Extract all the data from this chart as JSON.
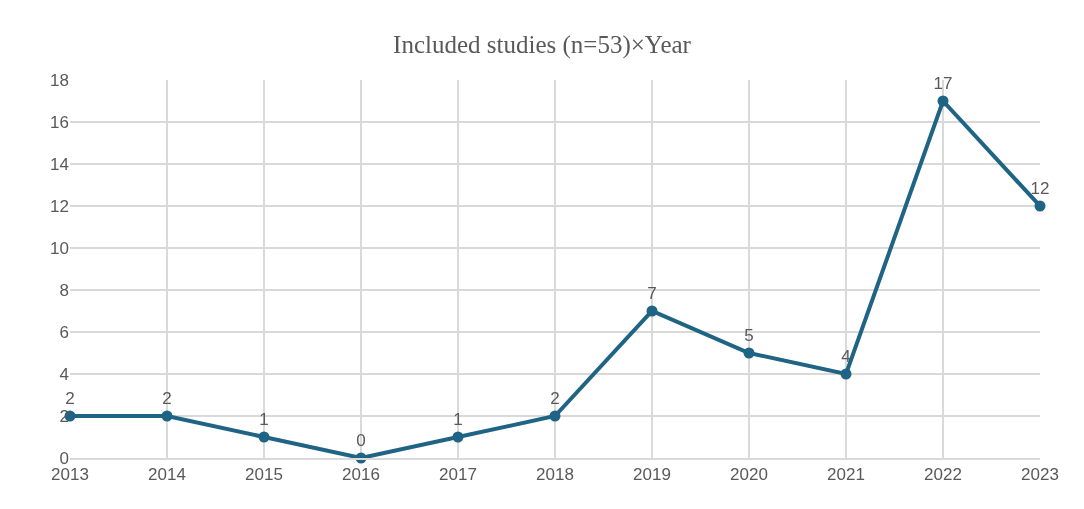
{
  "chart_data": {
    "type": "line",
    "title": "Included studies (n=53)×Year",
    "x": [
      2013,
      2014,
      2015,
      2016,
      2017,
      2018,
      2019,
      2020,
      2021,
      2022,
      2023
    ],
    "series": [
      {
        "color": "#1f6484",
        "values": [
          2,
          2,
          1,
          0,
          1,
          2,
          7,
          5,
          4,
          17,
          12
        ]
      }
    ],
    "xlim": [
      2013,
      2023
    ],
    "xticks": [
      2013,
      2014,
      2015,
      2016,
      2017,
      2018,
      2019,
      2020,
      2021,
      2022,
      2023
    ],
    "ylim": [
      0,
      18
    ],
    "yticks": [
      0,
      2,
      4,
      6,
      8,
      10,
      12,
      14,
      16,
      18
    ],
    "grid": true,
    "marker": "circle",
    "line_style": "solid",
    "data_labels": true
  }
}
